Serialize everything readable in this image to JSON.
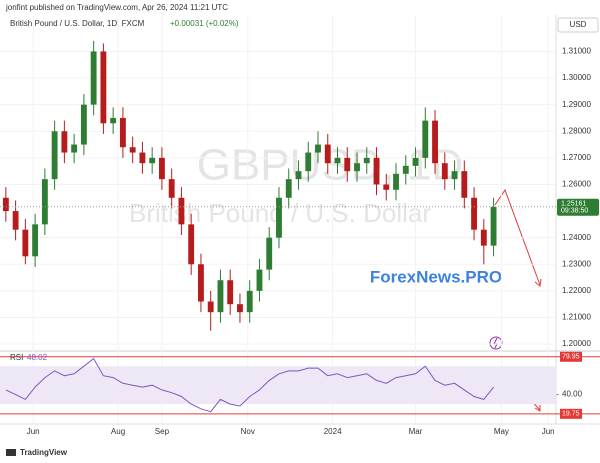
{
  "header": {
    "publisher": "jonfint published on TradingView.com, Apr 26, 2024 11:21 UTC",
    "instrument": "British Pound / U.S. Dollar, 1D, FXCM",
    "change": "+0.00031 (+0.02%)",
    "currency": "USD",
    "watermark_symbol": "GBPUSD, 1D",
    "watermark_name": "British Pound / U.S. Dollar",
    "brand": "ForexNews.PRO"
  },
  "footer": {
    "logo": "TradingView"
  },
  "chart_data": [
    {
      "type": "candlestick",
      "up_color": "#2e7d32",
      "down_color": "#b71c1c",
      "open": [
        1.255,
        1.25,
        1.243,
        1.233,
        1.245,
        1.262,
        1.28,
        1.272,
        1.275,
        1.29,
        1.31,
        1.283,
        1.285,
        1.274,
        1.272,
        1.268,
        1.27,
        1.262,
        1.255,
        1.245,
        1.23,
        1.216,
        1.212,
        1.224,
        1.215,
        1.212,
        1.22,
        1.228,
        1.24,
        1.255,
        1.262,
        1.265,
        1.272,
        1.275,
        1.268,
        1.27,
        1.265,
        1.268,
        1.27,
        1.26,
        1.258,
        1.264,
        1.267,
        1.27,
        1.284,
        1.268,
        1.262,
        1.265,
        1.255,
        1.243,
        1.237
      ],
      "high": [
        1.259,
        1.254,
        1.247,
        1.249,
        1.266,
        1.284,
        1.284,
        1.279,
        1.294,
        1.314,
        1.313,
        1.289,
        1.289,
        1.278,
        1.276,
        1.274,
        1.274,
        1.266,
        1.259,
        1.249,
        1.234,
        1.22,
        1.228,
        1.228,
        1.219,
        1.224,
        1.232,
        1.244,
        1.259,
        1.266,
        1.269,
        1.276,
        1.28,
        1.279,
        1.274,
        1.274,
        1.272,
        1.274,
        1.274,
        1.264,
        1.268,
        1.271,
        1.274,
        1.289,
        1.288,
        1.272,
        1.269,
        1.269,
        1.259,
        1.247,
        1.255
      ],
      "low": [
        1.246,
        1.239,
        1.23,
        1.229,
        1.241,
        1.258,
        1.268,
        1.268,
        1.271,
        1.286,
        1.279,
        1.279,
        1.27,
        1.268,
        1.264,
        1.264,
        1.258,
        1.251,
        1.241,
        1.226,
        1.212,
        1.205,
        1.208,
        1.211,
        1.208,
        1.208,
        1.216,
        1.224,
        1.236,
        1.251,
        1.258,
        1.261,
        1.268,
        1.264,
        1.264,
        1.261,
        1.261,
        1.264,
        1.256,
        1.254,
        1.254,
        1.26,
        1.263,
        1.266,
        1.264,
        1.258,
        1.258,
        1.251,
        1.239,
        1.23,
        1.233
      ],
      "close": [
        1.25,
        1.243,
        1.233,
        1.245,
        1.262,
        1.28,
        1.272,
        1.275,
        1.29,
        1.31,
        1.283,
        1.285,
        1.274,
        1.272,
        1.268,
        1.27,
        1.262,
        1.255,
        1.245,
        1.23,
        1.216,
        1.212,
        1.224,
        1.215,
        1.212,
        1.22,
        1.228,
        1.24,
        1.255,
        1.262,
        1.265,
        1.272,
        1.275,
        1.268,
        1.27,
        1.265,
        1.268,
        1.27,
        1.26,
        1.258,
        1.264,
        1.267,
        1.27,
        1.284,
        1.268,
        1.262,
        1.265,
        1.255,
        1.243,
        1.237,
        1.2516
      ],
      "xlim": [
        -0.6,
        56.4
      ],
      "xticks": [
        {
          "value": 2.8,
          "label": "Jun"
        },
        {
          "value": 11.5,
          "label": "Aug"
        },
        {
          "value": 16,
          "label": "Sep"
        },
        {
          "value": 24.8,
          "label": "Nov"
        },
        {
          "value": 33.5,
          "label": "2024"
        },
        {
          "value": 42,
          "label": "Mar"
        },
        {
          "value": 50.8,
          "label": "May"
        },
        {
          "value": 55.6,
          "label": "Jun"
        }
      ],
      "ylim": [
        1.1974,
        1.3237
      ],
      "yticks": [
        {
          "value": 1.31,
          "label": "1.31000"
        },
        {
          "value": 1.3,
          "label": "1.30000"
        },
        {
          "value": 1.29,
          "label": "1.29000"
        },
        {
          "value": 1.28,
          "label": "1.28000"
        },
        {
          "value": 1.27,
          "label": "1.27000"
        },
        {
          "value": 1.26,
          "label": "1.26000"
        },
        {
          "value": 1.24,
          "label": "1.24000"
        },
        {
          "value": 1.23,
          "label": "1.23000"
        },
        {
          "value": 1.22,
          "label": "1.22000"
        },
        {
          "value": 1.21,
          "label": "1.21000"
        },
        {
          "value": 1.2,
          "label": "1.20000"
        }
      ],
      "last_price": 1.25161,
      "last_time": "09:38:50"
    },
    {
      "type": "line",
      "name": "RSI",
      "last_value": 48.02,
      "color": "#7e57c2",
      "values": [
        45,
        40,
        35,
        48,
        58,
        65,
        60,
        62,
        70,
        78,
        60,
        58,
        52,
        50,
        48,
        50,
        45,
        42,
        38,
        30,
        25,
        22,
        35,
        30,
        28,
        38,
        45,
        55,
        62,
        65,
        65,
        68,
        68,
        60,
        62,
        58,
        60,
        62,
        55,
        52,
        58,
        60,
        62,
        70,
        55,
        50,
        52,
        45,
        38,
        35,
        48
      ],
      "ylim": [
        9,
        85
      ],
      "yticks": [
        {
          "value": 40,
          "label": "40.00"
        }
      ],
      "band": [
        30,
        70
      ],
      "hlines": [
        79.95,
        19.75
      ]
    }
  ]
}
